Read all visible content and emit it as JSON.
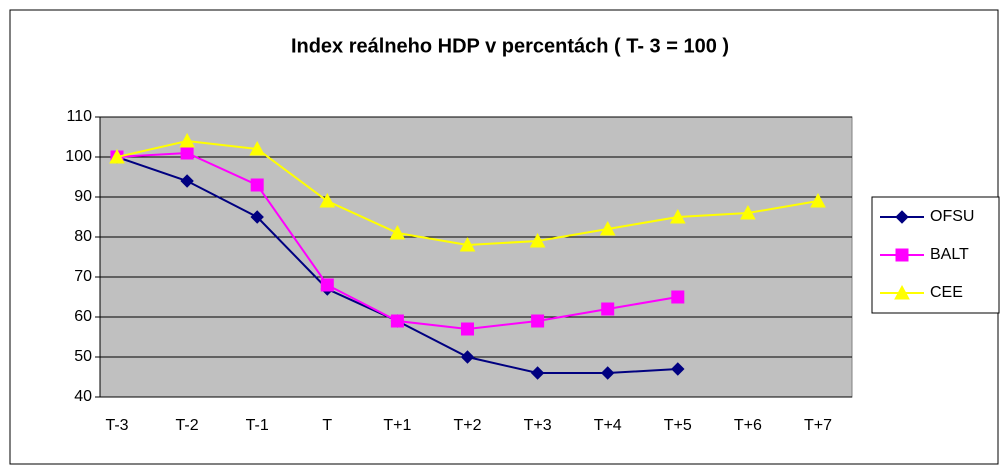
{
  "chart_data": {
    "type": "line",
    "title": "Index reálneho HDP v percentách ( T- 3 = 100 )",
    "categories": [
      "T-3",
      "T-2",
      "T-1",
      "T",
      "T+1",
      "T+2",
      "T+3",
      "T+4",
      "T+5",
      "T+6",
      "T+7"
    ],
    "series": [
      {
        "name": "OFSU",
        "color": "#000080",
        "marker": "diamond",
        "values": [
          100,
          94,
          85,
          67,
          59,
          50,
          46,
          46,
          47,
          null,
          null
        ]
      },
      {
        "name": "BALT",
        "color": "#ff00ff",
        "marker": "square",
        "values": [
          100,
          101,
          93,
          68,
          59,
          57,
          59,
          62,
          65,
          null,
          null
        ]
      },
      {
        "name": "CEE",
        "color": "#ffff00",
        "marker": "triangle",
        "values": [
          100,
          104,
          102,
          89,
          81,
          78,
          79,
          82,
          85,
          86,
          89
        ]
      }
    ],
    "ylim": [
      40,
      110
    ],
    "yticks": [
      40,
      50,
      60,
      70,
      80,
      90,
      100,
      110
    ],
    "grid": true,
    "legend": "right"
  }
}
